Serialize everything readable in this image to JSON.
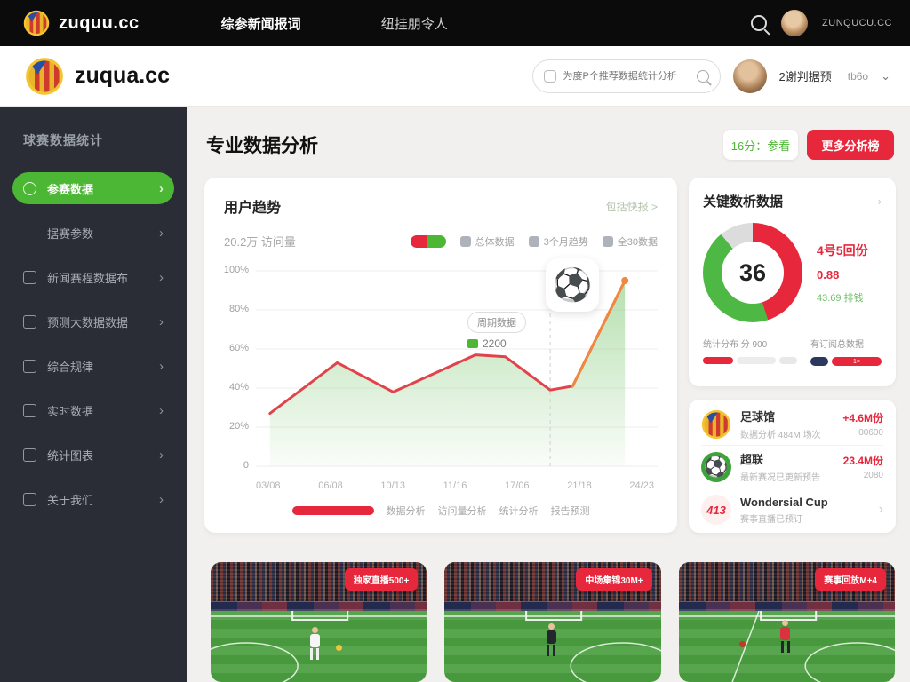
{
  "topbar": {
    "logo_text": "zuquu.cc",
    "nav": [
      {
        "label": "综参新闻报词"
      },
      {
        "label": "纽挂朋令人"
      }
    ],
    "user_text": "ZUNQUCU.CC"
  },
  "header": {
    "logo_text": "zuqua.cc",
    "search_placeholder": "为度P个推荐数据统计分析",
    "username": "2谢判据预",
    "user_meta": "tb6o"
  },
  "sidebar": {
    "title": "球赛数据统计",
    "items": [
      {
        "label": "参赛数据",
        "active": true,
        "icon": "target-icon"
      },
      {
        "label": "据赛参数",
        "active": false,
        "icon": ""
      },
      {
        "label": "新闻赛程数据布",
        "active": false,
        "icon": "monitor-icon"
      },
      {
        "label": "预测大数据数据",
        "active": false,
        "icon": "doc-icon"
      },
      {
        "label": "综合规律",
        "active": false,
        "icon": "layers-icon"
      },
      {
        "label": "实时数据",
        "active": false,
        "icon": "clock-icon"
      },
      {
        "label": "统计图表",
        "active": false,
        "icon": "folder-icon"
      },
      {
        "label": "关于我们",
        "active": false,
        "icon": "grid-icon"
      }
    ]
  },
  "main": {
    "title": "专业数据分析",
    "btn_secondary": "16分：参看",
    "btn_primary": "更多分析榜"
  },
  "trend_card": {
    "title": "用户趋势",
    "link": "包括快报 >",
    "stat": "20.2万 访问量",
    "legend_chips": [
      "总体数据",
      "3个月趋势",
      "全30数据"
    ],
    "tooltip": {
      "label": "周期数据",
      "value": "2200"
    },
    "bottom_legend": [
      "数据分析",
      "访问量分析",
      "统计分析",
      "报告预测"
    ]
  },
  "chart_data": [
    {
      "type": "line",
      "title": "用户趋势",
      "x": [
        "03/08",
        "06/08",
        "10/13",
        "11/16",
        "17/06",
        "21/18",
        "24/23"
      ],
      "yticks": [
        "100%",
        "80%",
        "60%",
        "40%",
        "20%",
        "0"
      ],
      "ylim": [
        0,
        100
      ],
      "grid": true,
      "legend_position": "top-right",
      "series": [
        {
          "name": "用户趋势",
          "points": [
            {
              "x": 0,
              "y": 27
            },
            {
              "x": 18,
              "y": 53
            },
            {
              "x": 33,
              "y": 38
            },
            {
              "x": 55,
              "y": 57
            },
            {
              "x": 63,
              "y": 56
            },
            {
              "x": 75,
              "y": 39
            },
            {
              "x": 81,
              "y": 41
            },
            {
              "x": 95,
              "y": 95
            }
          ]
        }
      ],
      "tooltip_point_index": 5,
      "line_color": "#e2434b",
      "end_color": "#f0883f",
      "area_fill": "green-gradient"
    },
    {
      "type": "donut",
      "center_label": "36",
      "segments": [
        {
          "name": "红色占比",
          "value": 45,
          "color": "#e6273c"
        },
        {
          "name": "绿色占比",
          "value": 44,
          "color": "#4db944"
        },
        {
          "name": "灰色占比",
          "value": 11,
          "color": "#dcdcdc"
        }
      ]
    }
  ],
  "key_card": {
    "title": "关键数析数据",
    "more": "›",
    "center_value": "36",
    "stat1": "4号5回份",
    "stat2": "0.88",
    "stat3": "43.69 排钱",
    "foot_left_label": "统计分布 分 900",
    "foot_right_label": "有订阅总数据",
    "bar_badge": "1×"
  },
  "list_card": {
    "items": [
      {
        "icon": "club-crest-icon",
        "title": "足球馆",
        "subtitle": "数据分析 484M 场次",
        "value": "+4.6M份",
        "note": "00600",
        "chevron": false
      },
      {
        "icon": "soccer-ball-icon",
        "title": "超联",
        "subtitle": "最新赛况已更新预告",
        "value": "23.4M份",
        "note": "2080",
        "chevron": false
      },
      {
        "icon": "brand-413-icon",
        "title": "Wondersial Cup",
        "subtitle": "赛事直播已预订",
        "value": "",
        "note": "",
        "chevron": true
      }
    ]
  },
  "bottom_cards": [
    {
      "badge": "独家直播500+",
      "variant": "white-kit"
    },
    {
      "badge": "中场集锦30M+",
      "variant": "dark-kit"
    },
    {
      "badge": "赛事回放M+4",
      "variant": "red-kit"
    }
  ],
  "colors": {
    "accent_green": "#4cb734",
    "accent_red": "#e6273c",
    "sidebar_bg": "#2a2d35",
    "page_bg": "#f1f0ee"
  }
}
